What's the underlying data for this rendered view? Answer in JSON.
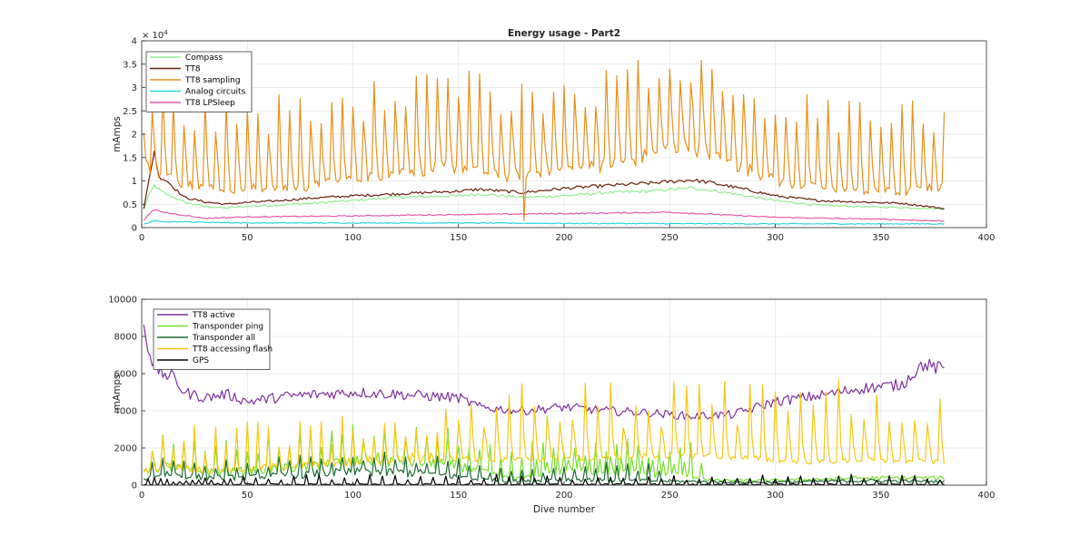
{
  "chart_data": [
    {
      "type": "line",
      "title": "Energy usage - Part2",
      "xlabel": "",
      "ylabel": "mAmps",
      "xlim": [
        0,
        400
      ],
      "ylim": [
        0,
        40000
      ],
      "xticks": [
        0,
        50,
        100,
        150,
        200,
        250,
        300,
        350,
        400
      ],
      "yticks": [
        0,
        5000,
        10000,
        15000,
        20000,
        25000,
        30000,
        35000,
        40000
      ],
      "ytick_labels": [
        "0",
        "0.5",
        "1",
        "1.5",
        "2",
        "2.5",
        "3",
        "3.5",
        "4"
      ],
      "exponent_label": "× 10",
      "exponent_power": "4",
      "grid": true,
      "legend_position": "top-left",
      "series": [
        {
          "name": "Compass",
          "color": "#90ee90",
          "pattern": "offset_noise",
          "knots": [
            [
              1,
              3800
            ],
            [
              3,
              6500
            ],
            [
              6,
              9000
            ],
            [
              10,
              7500
            ],
            [
              20,
              5500
            ],
            [
              30,
              4500
            ],
            [
              40,
              4200
            ],
            [
              50,
              4600
            ],
            [
              60,
              4700
            ],
            [
              80,
              5200
            ],
            [
              100,
              5800
            ],
            [
              120,
              6500
            ],
            [
              150,
              6800
            ],
            [
              160,
              7200
            ],
            [
              180,
              6500
            ],
            [
              200,
              6800
            ],
            [
              220,
              7500
            ],
            [
              240,
              7800
            ],
            [
              260,
              8500
            ],
            [
              270,
              8000
            ],
            [
              290,
              6500
            ],
            [
              300,
              5800
            ],
            [
              320,
              4800
            ],
            [
              340,
              4500
            ],
            [
              360,
              4300
            ],
            [
              380,
              4000
            ]
          ]
        },
        {
          "name": "TT8",
          "color": "#6b1e0b",
          "pattern": "offset_noise",
          "knots": [
            [
              1,
              4200
            ],
            [
              3,
              9000
            ],
            [
              6,
              16500
            ],
            [
              8,
              11000
            ],
            [
              12,
              10000
            ],
            [
              20,
              6500
            ],
            [
              30,
              5500
            ],
            [
              40,
              5000
            ],
            [
              50,
              5400
            ],
            [
              60,
              5600
            ],
            [
              80,
              6300
            ],
            [
              100,
              6800
            ],
            [
              120,
              7200
            ],
            [
              150,
              7800
            ],
            [
              160,
              8200
            ],
            [
              180,
              7500
            ],
            [
              200,
              8400
            ],
            [
              220,
              9000
            ],
            [
              240,
              9500
            ],
            [
              260,
              10200
            ],
            [
              270,
              9600
            ],
            [
              290,
              7800
            ],
            [
              300,
              6800
            ],
            [
              320,
              5800
            ],
            [
              340,
              5500
            ],
            [
              360,
              5200
            ],
            [
              380,
              4100
            ]
          ]
        },
        {
          "name": "TT8 sampling",
          "color": "#e8901c",
          "pattern": "spikes_orange",
          "knots": [
            [
              1,
              17000
            ],
            [
              10,
              14000
            ],
            [
              20,
              12000
            ],
            [
              40,
              10500
            ],
            [
              60,
              10500
            ],
            [
              80,
              11000
            ],
            [
              100,
              13000
            ],
            [
              120,
              15000
            ],
            [
              140,
              16000
            ],
            [
              150,
              16500
            ],
            [
              160,
              15500
            ],
            [
              170,
              13500
            ],
            [
              180,
              14500
            ],
            [
              200,
              15500
            ],
            [
              220,
              17000
            ],
            [
              240,
              19000
            ],
            [
              250,
              21000
            ],
            [
              260,
              22000
            ],
            [
              270,
              20000
            ],
            [
              280,
              17000
            ],
            [
              290,
              15000
            ],
            [
              300,
              12500
            ],
            [
              320,
              10500
            ],
            [
              340,
              10000
            ],
            [
              360,
              9500
            ],
            [
              380,
              11000
            ]
          ]
        },
        {
          "name": "Analog circuits",
          "color": "#29d5e0",
          "pattern": "offset_noise",
          "knots": [
            [
              1,
              700
            ],
            [
              5,
              1400
            ],
            [
              10,
              1300
            ],
            [
              50,
              1000
            ],
            [
              150,
              1000
            ],
            [
              200,
              900
            ],
            [
              300,
              800
            ],
            [
              380,
              800
            ]
          ]
        },
        {
          "name": "TT8 LPSleep",
          "color": "#e45aa8",
          "pattern": "offset_noise",
          "knots": [
            [
              1,
              1500
            ],
            [
              3,
              2800
            ],
            [
              6,
              3800
            ],
            [
              10,
              3300
            ],
            [
              30,
              2000
            ],
            [
              50,
              2300
            ],
            [
              100,
              2500
            ],
            [
              150,
              2800
            ],
            [
              200,
              3000
            ],
            [
              250,
              3300
            ],
            [
              300,
              2200
            ],
            [
              350,
              1800
            ],
            [
              380,
              1400
            ]
          ]
        }
      ]
    },
    {
      "type": "line",
      "title": "",
      "xlabel": "Dive number",
      "ylabel": "mAmps",
      "xlim": [
        0,
        400
      ],
      "ylim": [
        0,
        10000
      ],
      "xticks": [
        0,
        50,
        100,
        150,
        200,
        250,
        300,
        350,
        400
      ],
      "yticks": [
        0,
        2000,
        4000,
        6000,
        8000,
        10000
      ],
      "ytick_labels": [
        "0",
        "2000",
        "4000",
        "6000",
        "8000",
        "10000"
      ],
      "grid": true,
      "legend_position": "top-left",
      "series": [
        {
          "name": "TT8 active",
          "color": "#7e2fa0",
          "pattern": "noise",
          "knots": [
            [
              1,
              8700
            ],
            [
              3,
              7500
            ],
            [
              6,
              6300
            ],
            [
              10,
              6000
            ],
            [
              15,
              5800
            ],
            [
              20,
              5000
            ],
            [
              30,
              4700
            ],
            [
              40,
              4900
            ],
            [
              50,
              4500
            ],
            [
              70,
              4800
            ],
            [
              100,
              5000
            ],
            [
              120,
              4900
            ],
            [
              150,
              4700
            ],
            [
              160,
              4200
            ],
            [
              180,
              4000
            ],
            [
              200,
              4200
            ],
            [
              220,
              4000
            ],
            [
              240,
              3900
            ],
            [
              260,
              3700
            ],
            [
              280,
              3800
            ],
            [
              300,
              4500
            ],
            [
              320,
              4800
            ],
            [
              340,
              5200
            ],
            [
              360,
              5400
            ],
            [
              365,
              6000
            ],
            [
              370,
              6500
            ],
            [
              380,
              6200
            ]
          ]
        },
        {
          "name": "Transponder ping",
          "color": "#76df2b",
          "pattern": "bumps_green",
          "knots": [
            [
              1,
              1000
            ],
            [
              10,
              1200
            ],
            [
              30,
              800
            ],
            [
              50,
              900
            ],
            [
              70,
              1100
            ],
            [
              90,
              1400
            ],
            [
              110,
              1600
            ],
            [
              130,
              1500
            ],
            [
              150,
              1200
            ],
            [
              160,
              900
            ],
            [
              170,
              500
            ],
            [
              180,
              400
            ],
            [
              190,
              800
            ],
            [
              200,
              900
            ],
            [
              220,
              900
            ],
            [
              240,
              700
            ],
            [
              260,
              600
            ],
            [
              270,
              300
            ],
            [
              300,
              300
            ],
            [
              340,
              450
            ],
            [
              380,
              450
            ]
          ]
        },
        {
          "name": "Transponder all",
          "color": "#1c6b35",
          "pattern": "bumps_dark",
          "knots": [
            [
              1,
              400
            ],
            [
              10,
              800
            ],
            [
              30,
              500
            ],
            [
              50,
              500
            ],
            [
              70,
              700
            ],
            [
              90,
              800
            ],
            [
              110,
              900
            ],
            [
              130,
              800
            ],
            [
              150,
              600
            ],
            [
              160,
              400
            ],
            [
              180,
              250
            ],
            [
              200,
              400
            ],
            [
              220,
              350
            ],
            [
              240,
              300
            ],
            [
              260,
              250
            ],
            [
              280,
              200
            ],
            [
              300,
              200
            ],
            [
              340,
              300
            ],
            [
              380,
              250
            ]
          ]
        },
        {
          "name": "TT8 accessing flash",
          "color": "#f7c712",
          "pattern": "spikes_yellow",
          "knots": [
            [
              1,
              800
            ],
            [
              10,
              1200
            ],
            [
              30,
              900
            ],
            [
              50,
              1000
            ],
            [
              80,
              1200
            ],
            [
              100,
              1400
            ],
            [
              120,
              1600
            ],
            [
              150,
              1600
            ],
            [
              170,
              1500
            ],
            [
              200,
              1600
            ],
            [
              230,
              1700
            ],
            [
              260,
              1800
            ],
            [
              280,
              1700
            ],
            [
              300,
              1500
            ],
            [
              320,
              1400
            ],
            [
              340,
              1500
            ],
            [
              360,
              1400
            ],
            [
              380,
              1400
            ]
          ]
        },
        {
          "name": "GPS",
          "color": "#000000",
          "pattern": "gps",
          "knots": [
            [
              1,
              0
            ],
            [
              380,
              0
            ]
          ]
        }
      ]
    }
  ]
}
